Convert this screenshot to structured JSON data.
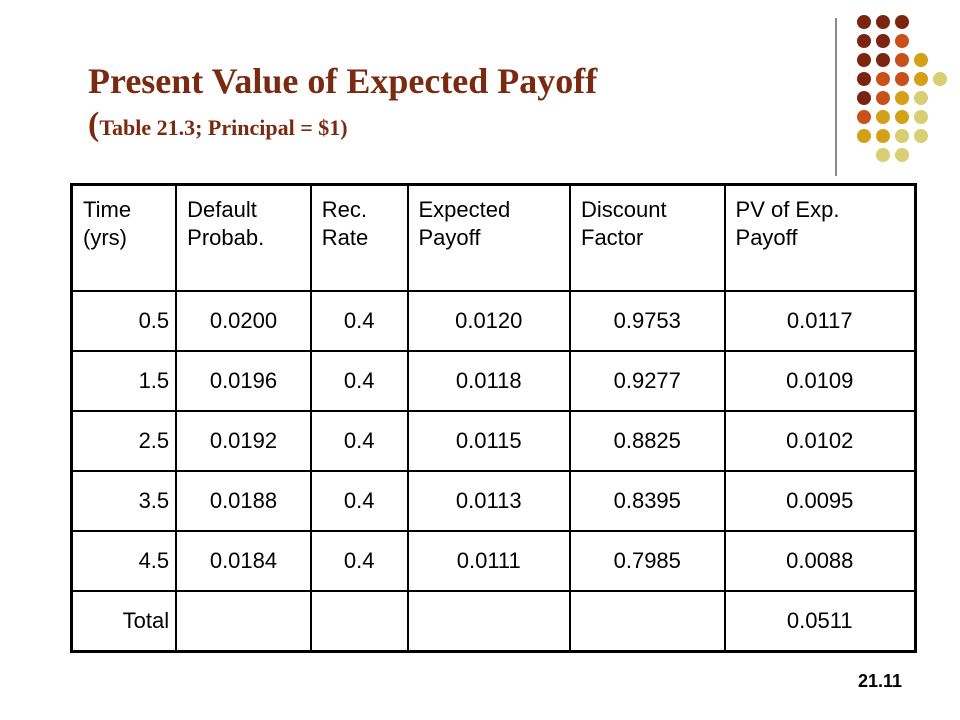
{
  "slide": {
    "title": "Present Value of Expected Payoff",
    "subtitle_paren": "(",
    "subtitle": "Table 21.3; Principal = $1)",
    "slide_number": "21.11"
  },
  "table": {
    "headers": [
      [
        "Time",
        "(yrs)"
      ],
      [
        "Default",
        "Probab."
      ],
      [
        "Rec.",
        "Rate"
      ],
      [
        "Expected",
        "Payoff"
      ],
      [
        "Discount",
        "Factor"
      ],
      [
        "PV of Exp.",
        "Payoff"
      ]
    ],
    "rows": [
      [
        "0.5",
        "0.0200",
        "0.4",
        "0.0120",
        "0.9753",
        "0.0117"
      ],
      [
        "1.5",
        "0.0196",
        "0.4",
        "0.0118",
        "0.9277",
        "0.0109"
      ],
      [
        "2.5",
        "0.0192",
        "0.4",
        "0.0115",
        "0.8825",
        "0.0102"
      ],
      [
        "3.5",
        "0.0188",
        "0.4",
        "0.0113",
        "0.8395",
        "0.0095"
      ],
      [
        "4.5",
        "0.0184",
        "0.4",
        "0.0111",
        "0.7985",
        "0.0088"
      ],
      [
        "Total",
        "",
        "",
        "",
        "",
        "0.0511"
      ]
    ]
  },
  "decoration": {
    "dot_colors": [
      "#7b2410",
      "#c8501a",
      "#d4a017",
      "#d7cf72"
    ]
  }
}
